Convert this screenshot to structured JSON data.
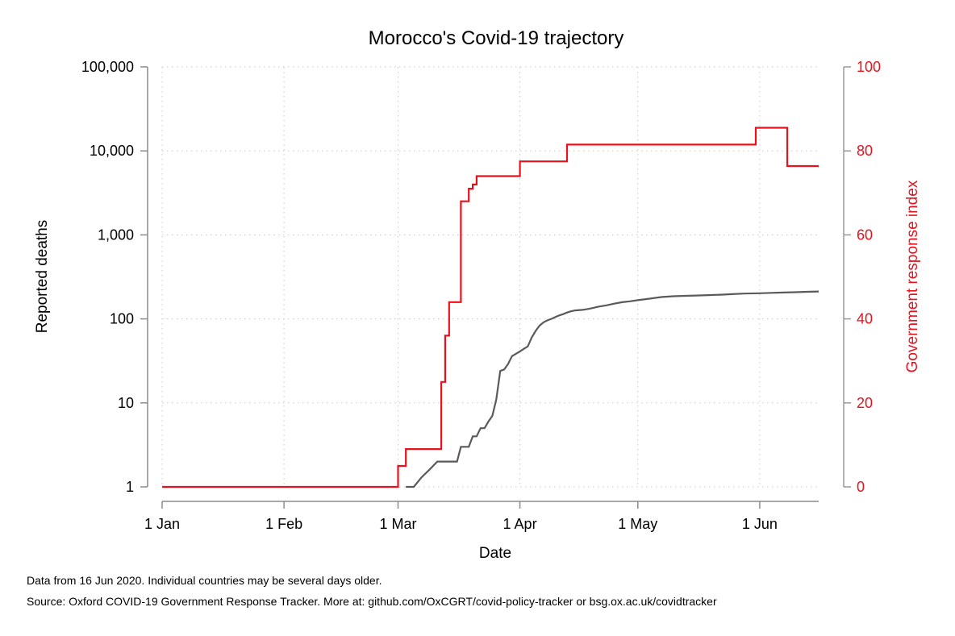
{
  "chart_data": {
    "type": "line",
    "title": "Morocco's Covid-19 trajectory",
    "xlabel": "Date",
    "ylabel_left": "Reported deaths",
    "ylabel_right": "Government response index",
    "x_ticks": [
      {
        "label": "1 Jan",
        "date": "2020-01-01"
      },
      {
        "label": "1 Feb",
        "date": "2020-02-01"
      },
      {
        "label": "1 Mar",
        "date": "2020-03-01"
      },
      {
        "label": "1 Apr",
        "date": "2020-04-01"
      },
      {
        "label": "1 May",
        "date": "2020-05-01"
      },
      {
        "label": "1 Jun",
        "date": "2020-06-01"
      }
    ],
    "xlim": [
      "2020-01-01",
      "2020-06-16"
    ],
    "y_left": {
      "scale": "log",
      "ylim": [
        1,
        100000
      ],
      "ticks": [
        {
          "label": "1",
          "value": 1
        },
        {
          "label": "10",
          "value": 10
        },
        {
          "label": "100",
          "value": 100
        },
        {
          "label": "1,000",
          "value": 1000
        },
        {
          "label": "10,000",
          "value": 10000
        },
        {
          "label": "100,000",
          "value": 100000
        }
      ]
    },
    "y_right": {
      "scale": "linear",
      "ylim": [
        0,
        100
      ],
      "ticks": [
        {
          "label": "0",
          "value": 0
        },
        {
          "label": "20",
          "value": 20
        },
        {
          "label": "40",
          "value": 40
        },
        {
          "label": "60",
          "value": 60
        },
        {
          "label": "80",
          "value": 80
        },
        {
          "label": "100",
          "value": 100
        }
      ]
    },
    "grid": true,
    "colors": {
      "deaths": "#5a5a5a",
      "response": "#e8111c",
      "axis_left": "#8c8c8c",
      "axis_right": "#999999",
      "grid": "#c8c8c8"
    },
    "series": [
      {
        "axis": "left",
        "step": false,
        "points": [
          [
            "2020-03-03",
            1
          ],
          [
            "2020-03-05",
            1
          ],
          [
            "2020-03-07",
            1.3
          ],
          [
            "2020-03-09",
            1.6
          ],
          [
            "2020-03-11",
            2
          ],
          [
            "2020-03-14",
            2
          ],
          [
            "2020-03-16",
            2
          ],
          [
            "2020-03-17",
            3
          ],
          [
            "2020-03-19",
            3
          ],
          [
            "2020-03-20",
            4
          ],
          [
            "2020-03-21",
            4
          ],
          [
            "2020-03-22",
            5
          ],
          [
            "2020-03-23",
            5
          ],
          [
            "2020-03-24",
            6
          ],
          [
            "2020-03-25",
            7
          ],
          [
            "2020-03-26",
            11
          ],
          [
            "2020-03-27",
            24
          ],
          [
            "2020-03-28",
            25
          ],
          [
            "2020-03-29",
            29
          ],
          [
            "2020-03-30",
            36
          ],
          [
            "2020-04-01",
            41
          ],
          [
            "2020-04-02",
            44
          ],
          [
            "2020-04-03",
            47
          ],
          [
            "2020-04-04",
            60
          ],
          [
            "2020-04-05",
            72
          ],
          [
            "2020-04-06",
            83
          ],
          [
            "2020-04-07",
            91
          ],
          [
            "2020-04-08",
            96
          ],
          [
            "2020-04-09",
            100
          ],
          [
            "2020-04-10",
            105
          ],
          [
            "2020-04-11",
            110
          ],
          [
            "2020-04-12",
            114
          ],
          [
            "2020-04-13",
            119
          ],
          [
            "2020-04-14",
            123
          ],
          [
            "2020-04-15",
            126
          ],
          [
            "2020-04-17",
            128
          ],
          [
            "2020-04-19",
            133
          ],
          [
            "2020-04-21",
            140
          ],
          [
            "2020-04-23",
            145
          ],
          [
            "2020-04-25",
            152
          ],
          [
            "2020-04-27",
            158
          ],
          [
            "2020-04-29",
            162
          ],
          [
            "2020-05-01",
            167
          ],
          [
            "2020-05-04",
            174
          ],
          [
            "2020-05-07",
            182
          ],
          [
            "2020-05-10",
            186
          ],
          [
            "2020-05-13",
            188
          ],
          [
            "2020-05-16",
            190
          ],
          [
            "2020-05-19",
            192
          ],
          [
            "2020-05-22",
            194
          ],
          [
            "2020-05-25",
            197
          ],
          [
            "2020-05-28",
            200
          ],
          [
            "2020-06-01",
            202
          ],
          [
            "2020-06-04",
            204
          ],
          [
            "2020-06-07",
            206
          ],
          [
            "2020-06-10",
            208
          ],
          [
            "2020-06-13",
            210
          ],
          [
            "2020-06-16",
            212
          ]
        ]
      },
      {
        "axis": "right",
        "step": true,
        "points": [
          [
            "2020-01-01",
            0
          ],
          [
            "2020-03-01",
            5
          ],
          [
            "2020-03-02",
            5
          ],
          [
            "2020-03-03",
            9
          ],
          [
            "2020-03-08",
            9
          ],
          [
            "2020-03-11",
            9
          ],
          [
            "2020-03-12",
            25
          ],
          [
            "2020-03-13",
            36
          ],
          [
            "2020-03-14",
            44
          ],
          [
            "2020-03-16",
            44
          ],
          [
            "2020-03-17",
            68
          ],
          [
            "2020-03-18",
            68
          ],
          [
            "2020-03-19",
            71
          ],
          [
            "2020-03-20",
            72
          ],
          [
            "2020-03-21",
            74
          ],
          [
            "2020-03-25",
            74
          ],
          [
            "2020-04-01",
            77.5
          ],
          [
            "2020-04-13",
            81.5
          ],
          [
            "2020-05-31",
            85.5
          ],
          [
            "2020-06-08",
            76.4
          ],
          [
            "2020-06-16",
            76.4
          ]
        ]
      }
    ]
  },
  "notes": {
    "line1": "Data from 16 Jun 2020. Individual countries may be several days older.",
    "line2": "Source: Oxford COVID-19 Government Response Tracker. More at: github.com/OxCGRT/covid-policy-tracker or bsg.ox.ac.uk/covidtracker"
  }
}
